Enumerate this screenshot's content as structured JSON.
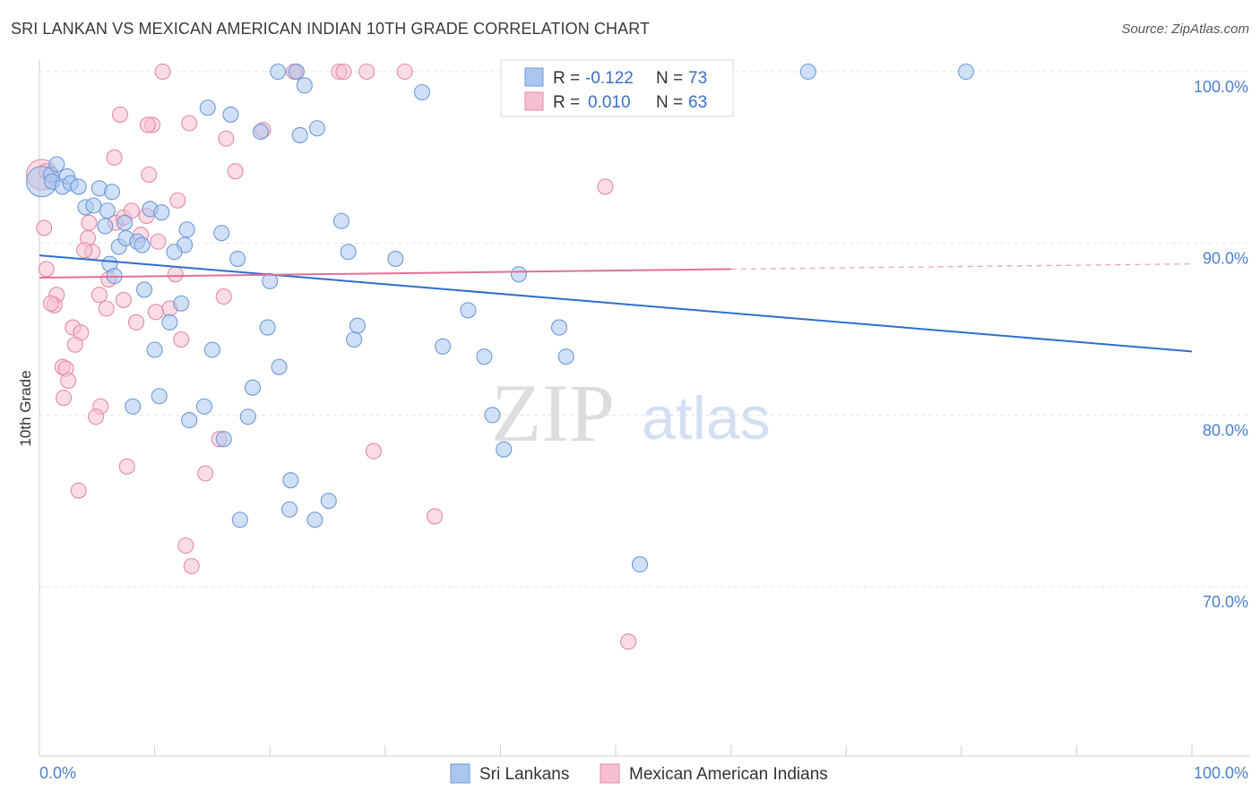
{
  "title": "SRI LANKAN VS MEXICAN AMERICAN INDIAN 10TH GRADE CORRELATION CHART",
  "source": "Source: ZipAtlas.com",
  "watermark": {
    "zip": "ZIP",
    "atlas": "atlas"
  },
  "colors": {
    "blue_fill": "#aac6ef",
    "blue_stroke": "#6f9ad8",
    "blue_line": "#2c6fcf",
    "pink_fill": "#f6bfcf",
    "pink_stroke": "#e58aa8",
    "pink_line": "#e0709a",
    "tick_text": "#4a7fd0",
    "grid": "#e2e2e2"
  },
  "legend": {
    "rows": [
      {
        "r_label": "R =",
        "r_value": "-0.122",
        "n_label": "N =",
        "n_value": "73"
      },
      {
        "r_label": "R =",
        "r_value": "0.010",
        "n_label": "N =",
        "n_value": "63"
      }
    ]
  },
  "bottom_legend": [
    "Sri Lankans",
    "Mexican American Indians"
  ],
  "chart_data": {
    "type": "scatter",
    "title": "SRI LANKAN VS MEXICAN AMERICAN INDIAN 10TH GRADE CORRELATION CHART",
    "xlabel": "",
    "ylabel": "10th Grade",
    "xlim": [
      0,
      100
    ],
    "ylim": [
      60.5,
      101
    ],
    "x_tick_labels": [
      "0.0%",
      "100.0%"
    ],
    "y_ticks": [
      70,
      80,
      90,
      100
    ],
    "y_tick_labels": [
      "70.0%",
      "80.0%",
      "90.0%",
      "100.0%"
    ],
    "grid": true,
    "legend_position": "top-center",
    "series": [
      {
        "name": "Sri Lankans",
        "R": -0.122,
        "N": 73,
        "trend": {
          "x": [
            0,
            100
          ],
          "y": [
            89.3,
            83.7
          ]
        },
        "points": [
          {
            "x": 0.2,
            "y": 93.6,
            "big": true
          },
          {
            "x": 1.0,
            "y": 94.0
          },
          {
            "x": 1.5,
            "y": 94.6
          },
          {
            "x": 1.1,
            "y": 93.6
          },
          {
            "x": 2.0,
            "y": 93.3
          },
          {
            "x": 2.4,
            "y": 93.9
          },
          {
            "x": 2.7,
            "y": 93.5
          },
          {
            "x": 3.4,
            "y": 93.3
          },
          {
            "x": 5.2,
            "y": 93.2
          },
          {
            "x": 4.0,
            "y": 92.1
          },
          {
            "x": 4.7,
            "y": 92.2
          },
          {
            "x": 5.9,
            "y": 91.9
          },
          {
            "x": 5.7,
            "y": 91.0
          },
          {
            "x": 7.4,
            "y": 91.2
          },
          {
            "x": 9.6,
            "y": 92.0
          },
          {
            "x": 10.6,
            "y": 91.8
          },
          {
            "x": 6.9,
            "y": 89.8
          },
          {
            "x": 7.5,
            "y": 90.3
          },
          {
            "x": 8.5,
            "y": 90.1
          },
          {
            "x": 8.9,
            "y": 89.9
          },
          {
            "x": 12.8,
            "y": 90.8
          },
          {
            "x": 15.8,
            "y": 90.6
          },
          {
            "x": 12.6,
            "y": 89.9
          },
          {
            "x": 11.7,
            "y": 89.5
          },
          {
            "x": 6.1,
            "y": 88.8
          },
          {
            "x": 6.5,
            "y": 88.1
          },
          {
            "x": 17.2,
            "y": 89.1
          },
          {
            "x": 20.0,
            "y": 87.8
          },
          {
            "x": 9.1,
            "y": 87.3
          },
          {
            "x": 12.3,
            "y": 86.5
          },
          {
            "x": 11.3,
            "y": 85.4
          },
          {
            "x": 26.2,
            "y": 91.3
          },
          {
            "x": 26.8,
            "y": 89.5
          },
          {
            "x": 30.9,
            "y": 89.1
          },
          {
            "x": 41.6,
            "y": 88.2
          },
          {
            "x": 37.2,
            "y": 86.1
          },
          {
            "x": 19.8,
            "y": 85.1
          },
          {
            "x": 27.6,
            "y": 85.2
          },
          {
            "x": 27.3,
            "y": 84.4
          },
          {
            "x": 35.0,
            "y": 84.0
          },
          {
            "x": 45.1,
            "y": 85.1
          },
          {
            "x": 10.0,
            "y": 83.8
          },
          {
            "x": 15.0,
            "y": 83.8
          },
          {
            "x": 38.6,
            "y": 83.4
          },
          {
            "x": 45.7,
            "y": 83.4
          },
          {
            "x": 20.8,
            "y": 82.8
          },
          {
            "x": 18.5,
            "y": 81.6
          },
          {
            "x": 10.4,
            "y": 81.1
          },
          {
            "x": 8.1,
            "y": 80.5
          },
          {
            "x": 14.3,
            "y": 80.5
          },
          {
            "x": 13.0,
            "y": 79.7
          },
          {
            "x": 18.1,
            "y": 79.9
          },
          {
            "x": 39.3,
            "y": 80.0
          },
          {
            "x": 16.0,
            "y": 78.6
          },
          {
            "x": 40.3,
            "y": 78.0
          },
          {
            "x": 21.8,
            "y": 76.2
          },
          {
            "x": 25.1,
            "y": 75.0
          },
          {
            "x": 21.7,
            "y": 74.5
          },
          {
            "x": 17.4,
            "y": 73.9
          },
          {
            "x": 23.9,
            "y": 73.9
          },
          {
            "x": 52.1,
            "y": 71.3
          },
          {
            "x": 20.7,
            "y": 100.0
          },
          {
            "x": 22.3,
            "y": 100.0
          },
          {
            "x": 23.0,
            "y": 99.2
          },
          {
            "x": 66.7,
            "y": 100.0
          },
          {
            "x": 80.4,
            "y": 100.0
          },
          {
            "x": 33.2,
            "y": 98.8
          },
          {
            "x": 14.6,
            "y": 97.9
          },
          {
            "x": 16.6,
            "y": 97.5
          },
          {
            "x": 19.2,
            "y": 96.5
          },
          {
            "x": 22.6,
            "y": 96.3
          },
          {
            "x": 24.1,
            "y": 96.7
          },
          {
            "x": 6.3,
            "y": 93.0
          }
        ]
      },
      {
        "name": "Mexican American Indians",
        "R": 0.01,
        "N": 63,
        "trend": {
          "x": [
            0,
            60
          ],
          "y": [
            88.0,
            88.5
          ]
        },
        "trend_dashed": {
          "x": [
            60,
            100
          ],
          "y": [
            88.5,
            88.8
          ]
        },
        "points": [
          {
            "x": 0.2,
            "y": 94.0,
            "big": true
          },
          {
            "x": 0.6,
            "y": 94.2
          },
          {
            "x": 0.4,
            "y": 90.9
          },
          {
            "x": 0.6,
            "y": 88.5
          },
          {
            "x": 1.5,
            "y": 87.0
          },
          {
            "x": 1.3,
            "y": 86.4
          },
          {
            "x": 1.0,
            "y": 86.5
          },
          {
            "x": 2.9,
            "y": 85.1
          },
          {
            "x": 3.6,
            "y": 84.8
          },
          {
            "x": 3.1,
            "y": 84.1
          },
          {
            "x": 2.0,
            "y": 82.8
          },
          {
            "x": 2.3,
            "y": 82.7
          },
          {
            "x": 2.5,
            "y": 82.0
          },
          {
            "x": 2.1,
            "y": 81.0
          },
          {
            "x": 5.3,
            "y": 80.5
          },
          {
            "x": 4.9,
            "y": 79.9
          },
          {
            "x": 7.6,
            "y": 77.0
          },
          {
            "x": 3.4,
            "y": 75.6
          },
          {
            "x": 4.2,
            "y": 90.3
          },
          {
            "x": 4.3,
            "y": 91.2
          },
          {
            "x": 4.6,
            "y": 89.5
          },
          {
            "x": 3.9,
            "y": 89.6
          },
          {
            "x": 5.2,
            "y": 87.0
          },
          {
            "x": 5.8,
            "y": 86.2
          },
          {
            "x": 6.0,
            "y": 87.9
          },
          {
            "x": 7.3,
            "y": 86.7
          },
          {
            "x": 8.4,
            "y": 85.4
          },
          {
            "x": 6.6,
            "y": 91.2
          },
          {
            "x": 7.3,
            "y": 91.5
          },
          {
            "x": 8.0,
            "y": 91.9
          },
          {
            "x": 8.8,
            "y": 90.5
          },
          {
            "x": 9.3,
            "y": 91.6
          },
          {
            "x": 10.3,
            "y": 90.1
          },
          {
            "x": 11.8,
            "y": 88.2
          },
          {
            "x": 11.3,
            "y": 86.2
          },
          {
            "x": 10.1,
            "y": 86.0
          },
          {
            "x": 12.3,
            "y": 84.4
          },
          {
            "x": 16.0,
            "y": 86.9
          },
          {
            "x": 15.6,
            "y": 78.6
          },
          {
            "x": 14.4,
            "y": 76.6
          },
          {
            "x": 12.7,
            "y": 72.4
          },
          {
            "x": 13.2,
            "y": 71.2
          },
          {
            "x": 9.5,
            "y": 94.0
          },
          {
            "x": 12.0,
            "y": 92.5
          },
          {
            "x": 17.0,
            "y": 94.2
          },
          {
            "x": 16.2,
            "y": 96.1
          },
          {
            "x": 13.0,
            "y": 97.0
          },
          {
            "x": 9.8,
            "y": 96.9
          },
          {
            "x": 9.4,
            "y": 96.9
          },
          {
            "x": 7.0,
            "y": 97.5
          },
          {
            "x": 6.5,
            "y": 95.0
          },
          {
            "x": 19.4,
            "y": 96.6
          },
          {
            "x": 10.7,
            "y": 100.0
          },
          {
            "x": 22.3,
            "y": 100.0
          },
          {
            "x": 26.0,
            "y": 100.0
          },
          {
            "x": 26.4,
            "y": 100.0
          },
          {
            "x": 28.4,
            "y": 100.0
          },
          {
            "x": 31.7,
            "y": 100.0
          },
          {
            "x": 49.1,
            "y": 93.3
          },
          {
            "x": 29.0,
            "y": 77.9
          },
          {
            "x": 34.3,
            "y": 74.1
          },
          {
            "x": 51.1,
            "y": 66.8
          },
          {
            "x": 22.1,
            "y": 100.0
          }
        ]
      }
    ]
  }
}
